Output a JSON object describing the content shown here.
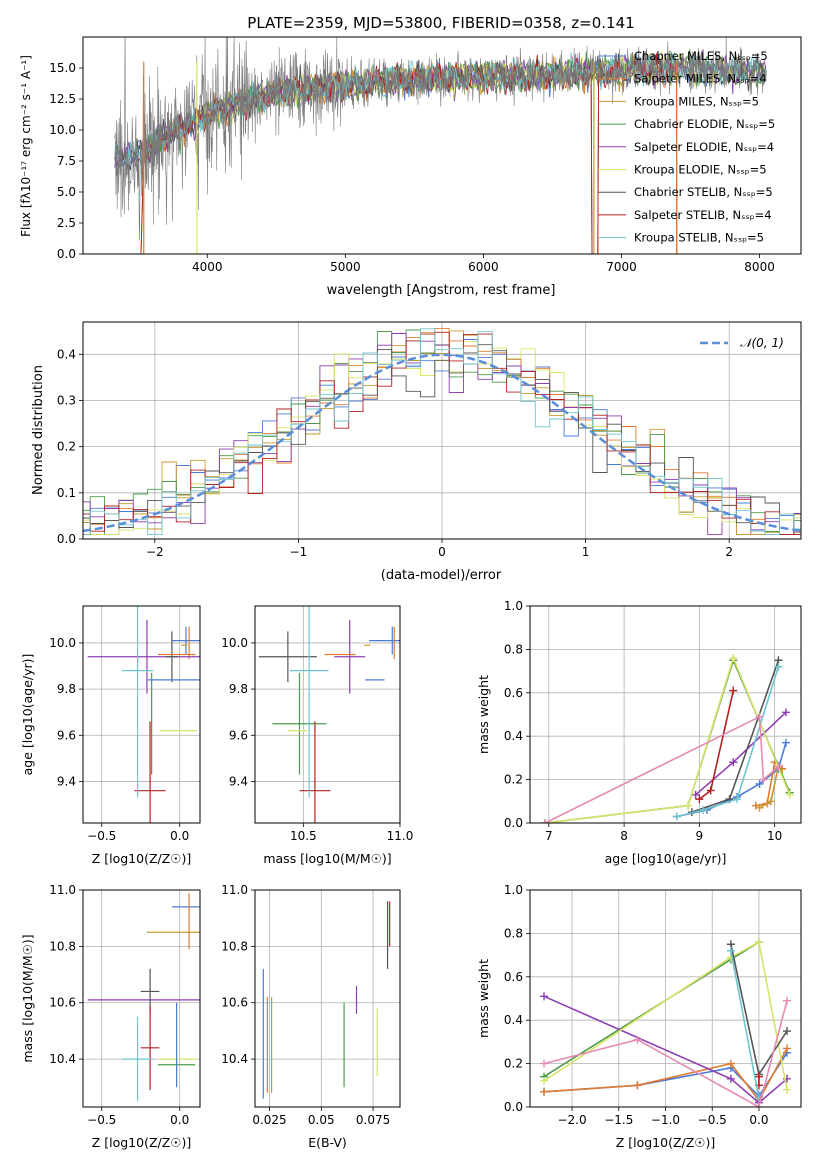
{
  "series_colors": [
    "#4c7ad8",
    "#e07b30",
    "#c99a2e",
    "#4d9b4a",
    "#8e3fb4",
    "#d9e36a",
    "#555555",
    "#b22222",
    "#6dc5cf"
  ],
  "chart_data": [
    {
      "id": "spectrum",
      "type": "line",
      "title": "PLATE=2359, MJD=53800, FIBERID=0358, z=0.141",
      "xlabel": "wavelength [Angstrom, rest frame]",
      "ylabel": "Flux [fλ10⁻¹⁷ erg cm⁻² s⁻¹ A⁻¹]",
      "xlim": [
        3100,
        8300
      ],
      "ylim": [
        0,
        17.5
      ],
      "xticks": [
        4000,
        5000,
        6000,
        7000,
        8000
      ],
      "yticks": [
        0.0,
        2.5,
        5.0,
        7.5,
        10.0,
        12.5,
        15.0
      ],
      "grid": false,
      "legend_position": "top-right",
      "legend": [
        "Chabrier MILES, N_SSP=5",
        "Salpeter MILES, N_SSP=4",
        "Kroupa MILES, N_SSP=5",
        "Chabrier ELODIE, N_SSP=5",
        "Salpeter ELODIE, N_SSP=4",
        "Kroupa ELODIE, N_SSP=5",
        "Chabrier STELIB, N_SSP=5",
        "Salpeter STELIB, N_SSP=4",
        "Kroupa STELIB, N_SSP=5"
      ],
      "data_trend": {
        "x": [
          3330,
          3500,
          3700,
          4000,
          4300,
          4600,
          5000,
          5500,
          6000,
          6500,
          7000,
          7400,
          8050
        ],
        "y": [
          7.6,
          8.0,
          9.5,
          11.2,
          12.4,
          13.2,
          13.6,
          14.1,
          14.3,
          14.5,
          14.8,
          15.0,
          14.6
        ]
      },
      "model_edges": [
        [
          3520,
          3560
        ],
        [
          3920,
          3930
        ],
        [
          6800,
          6800
        ],
        [
          7400,
          7400
        ]
      ]
    },
    {
      "id": "residuals",
      "type": "histogram",
      "xlabel": "(data-model)/error",
      "ylabel": "Normed distribution",
      "xlim": [
        -2.5,
        2.5
      ],
      "ylim": [
        0,
        0.47
      ],
      "xticks": [
        -2,
        -1,
        0,
        1,
        2
      ],
      "yticks": [
        0.0,
        0.1,
        0.2,
        0.3,
        0.4
      ],
      "grid": true,
      "legend_position": "top-right",
      "legend": [
        "N(0,1)"
      ],
      "bin_width": 0.1
    },
    {
      "id": "age-Z",
      "type": "scatter",
      "xlabel": "Z [log10(Z/Z☉)]",
      "ylabel": "age  [log10(age/yr)]",
      "xlim": [
        -0.62,
        0.13
      ],
      "ylim": [
        9.22,
        10.16
      ],
      "xticks": [
        -0.5,
        0.0
      ],
      "yticks": [
        9.4,
        9.6,
        9.8,
        10.0
      ],
      "points": [
        [
          0.04,
          10.01,
          0.09,
          0.06
        ],
        [
          0.06,
          10.0,
          0.0,
          0.07
        ],
        [
          0.03,
          9.99,
          0.0,
          0.0
        ],
        [
          -0.18,
          9.65,
          0.0,
          0.22
        ],
        [
          -0.21,
          9.94,
          0.38,
          0.16
        ],
        [
          -0.01,
          9.62,
          0.12,
          0.0
        ],
        [
          -0.05,
          9.94,
          0.04,
          0.11
        ],
        [
          -0.19,
          9.36,
          0.1,
          0.3
        ],
        [
          -0.27,
          9.88,
          0.1,
          0.55
        ],
        [
          -0.01,
          9.84,
          0.2,
          0.0
        ],
        [
          -0.02,
          9.95,
          0.12,
          0.0
        ]
      ]
    },
    {
      "id": "age-mass",
      "type": "scatter",
      "xlabel": "mass [log10(M/M☉)]",
      "ylabel": "",
      "xlim": [
        10.25,
        11.0
      ],
      "ylim": [
        9.22,
        10.16
      ],
      "xticks": [
        10.5,
        11.0
      ],
      "yticks": [
        9.4,
        9.6,
        9.8,
        10.0
      ],
      "points": [
        [
          10.96,
          10.01,
          0.12,
          0.06
        ],
        [
          10.97,
          10.0,
          0.0,
          0.07
        ],
        [
          10.83,
          9.99,
          0.0,
          0.0
        ],
        [
          10.48,
          9.65,
          0.14,
          0.22
        ],
        [
          10.74,
          9.94,
          0.08,
          0.16
        ],
        [
          10.47,
          9.62,
          0.05,
          0.0
        ],
        [
          10.42,
          9.94,
          0.15,
          0.11
        ],
        [
          10.56,
          9.36,
          0.08,
          0.3
        ],
        [
          10.53,
          9.88,
          0.1,
          0.55
        ],
        [
          10.87,
          9.84,
          0.05,
          0.0
        ],
        [
          10.69,
          9.95,
          0.08,
          0.0
        ]
      ]
    },
    {
      "id": "weight-age",
      "type": "line",
      "xlabel": "age  [log10(age/yr)]",
      "ylabel": "mass weight",
      "xlim": [
        6.75,
        10.35
      ],
      "ylim": [
        0,
        1.0
      ],
      "xticks": [
        7,
        8,
        9,
        10
      ],
      "yticks": [
        0.0,
        0.2,
        0.4,
        0.6,
        0.8,
        1.0
      ],
      "grid": true,
      "series": [
        {
          "x": [
            8.7,
            9.1,
            9.5,
            9.8,
            10.05,
            10.15
          ],
          "y": [
            0.03,
            0.06,
            0.12,
            0.18,
            0.25,
            0.37
          ]
        },
        {
          "x": [
            9.75,
            9.9,
            10.0,
            10.1
          ],
          "y": [
            0.08,
            0.09,
            0.28,
            0.25
          ]
        },
        {
          "x": [
            9.8,
            9.95,
            10.05
          ],
          "y": [
            0.07,
            0.1,
            0.26
          ]
        },
        {
          "x": [
            6.95,
            8.85,
            9.45,
            10.2
          ],
          "y": [
            0.0,
            0.08,
            0.75,
            0.14
          ]
        },
        {
          "x": [
            8.95,
            9.45,
            10.15
          ],
          "y": [
            0.13,
            0.28,
            0.51
          ]
        },
        {
          "x": [
            6.95,
            8.85,
            9.45,
            10.2
          ],
          "y": [
            0.0,
            0.08,
            0.76,
            0.13
          ]
        },
        {
          "x": [
            8.9,
            9.4,
            10.05
          ],
          "y": [
            0.05,
            0.11,
            0.75
          ]
        },
        {
          "x": [
            9.0,
            9.15,
            9.45
          ],
          "y": [
            0.11,
            0.15,
            0.61
          ]
        },
        {
          "x": [
            8.7,
            9.05,
            9.5,
            10.05
          ],
          "y": [
            0.03,
            0.06,
            0.11,
            0.72
          ]
        },
        {
          "x": [
            6.95,
            9.8,
            9.85,
            10.05
          ],
          "y": [
            0.0,
            0.49,
            0.2,
            0.26
          ]
        }
      ]
    },
    {
      "id": "mass-Z",
      "type": "scatter",
      "xlabel": "Z [log10(Z/Z☉)]",
      "ylabel": "mass [log10(M/M☉)]",
      "xlim": [
        -0.62,
        0.13
      ],
      "ylim": [
        10.23,
        11.0
      ],
      "xticks": [
        -0.5,
        0.0
      ],
      "yticks": [
        10.4,
        10.6,
        10.8,
        11.0
      ],
      "points": [
        [
          0.04,
          10.94,
          0.09,
          0.0
        ],
        [
          0.06,
          10.89,
          0.0,
          0.1
        ],
        [
          -0.01,
          10.85,
          0.2,
          0.0
        ],
        [
          -0.02,
          10.38,
          0.12,
          0.0
        ],
        [
          -0.21,
          10.61,
          0.38,
          0.0
        ],
        [
          -0.01,
          10.4,
          0.12,
          0.0
        ],
        [
          -0.19,
          10.64,
          0.06,
          0.08
        ],
        [
          -0.19,
          10.44,
          0.06,
          0.15
        ],
        [
          -0.27,
          10.4,
          0.1,
          0.15
        ],
        [
          -0.02,
          10.45,
          0.0,
          0.15
        ]
      ]
    },
    {
      "id": "mass-EBV",
      "type": "scatter",
      "xlabel": "E(B-V)",
      "ylabel": "",
      "xlim": [
        0.018,
        0.088
      ],
      "ylim": [
        10.23,
        11.0
      ],
      "xticks": [
        0.025,
        0.05,
        0.075
      ],
      "yticks": [
        10.4,
        10.6,
        10.8,
        11.0
      ],
      "points": [
        [
          0.022,
          10.49,
          0,
          0.23
        ],
        [
          0.024,
          10.45,
          0,
          0.17
        ],
        [
          0.026,
          10.45,
          0,
          0.17
        ],
        [
          0.061,
          10.45,
          0,
          0.15
        ],
        [
          0.067,
          10.61,
          0,
          0.05
        ],
        [
          0.077,
          10.46,
          0,
          0.12
        ],
        [
          0.082,
          10.84,
          0,
          0.12
        ],
        [
          0.083,
          10.88,
          0,
          0.08
        ]
      ]
    },
    {
      "id": "weight-Z",
      "type": "line",
      "xlabel": "Z [log10(Z/Z☉)]",
      "ylabel": "mass weight",
      "xlim": [
        -2.45,
        0.45
      ],
      "ylim": [
        0,
        1.0
      ],
      "xticks": [
        -2.0,
        -1.5,
        -1.0,
        -0.5,
        0.0
      ],
      "yticks": [
        0.0,
        0.2,
        0.4,
        0.6,
        0.8,
        1.0
      ],
      "grid": true,
      "series": [
        {
          "x": [
            -2.3,
            -1.3,
            -0.3,
            0.0,
            0.3
          ],
          "y": [
            0.07,
            0.1,
            0.18,
            0.05,
            0.25
          ]
        },
        {
          "x": [
            -2.3,
            -1.3,
            -0.3,
            0.0,
            0.3
          ],
          "y": [
            0.07,
            0.1,
            0.2,
            0.03,
            0.27
          ]
        },
        {
          "x": [
            -2.3,
            -0.3,
            0.0
          ],
          "y": [
            0.14,
            0.68,
            0.76
          ]
        },
        {
          "x": [
            -2.3,
            -0.3,
            0.0,
            0.3
          ],
          "y": [
            0.51,
            0.13,
            0.02,
            0.13
          ]
        },
        {
          "x": [
            -2.3,
            -0.3,
            0.0,
            0.3
          ],
          "y": [
            0.12,
            0.69,
            0.76,
            0.08
          ]
        },
        {
          "x": [
            -0.3,
            0.0,
            0.3
          ],
          "y": [
            0.75,
            0.15,
            0.35
          ]
        },
        {
          "x": [
            0.0,
            0.0
          ],
          "y": [
            0.1,
            0.14
          ]
        },
        {
          "x": [
            -0.3,
            0.0
          ],
          "y": [
            0.72,
            0.04
          ]
        },
        {
          "x": [
            -2.3,
            -1.3,
            0.0,
            0.3
          ],
          "y": [
            0.2,
            0.31,
            0.0,
            0.49
          ]
        }
      ]
    }
  ]
}
